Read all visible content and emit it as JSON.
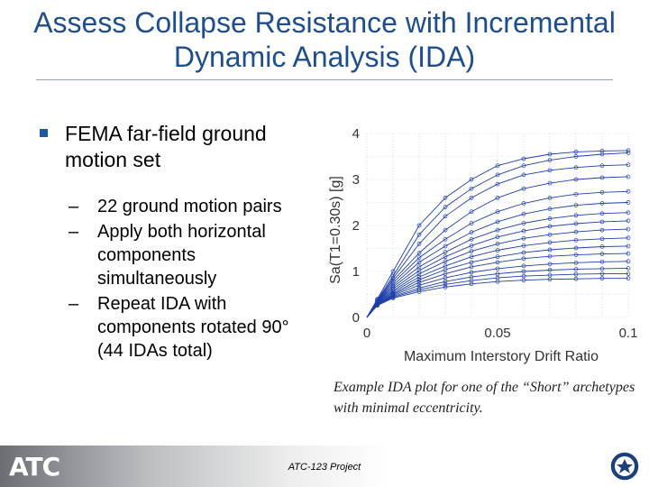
{
  "slide": {
    "title": "Assess Collapse Resistance with Incremental Dynamic Analysis (IDA)",
    "bullets": {
      "main": "FEMA far-field ground motion set",
      "subs": [
        "22 ground motion pairs",
        "Apply both horizontal components simultaneously",
        "Repeat IDA with components rotated 90° (44 IDAs total)"
      ],
      "dash": "–"
    },
    "caption": "Example IDA plot for one of the “Short” archetypes with minimal eccentricity.",
    "footer": {
      "logo_text": "ATC",
      "project": "ATC-123 Project",
      "seal_icon": "dhs-seal-icon"
    },
    "colors": {
      "title": "#1f4e8c",
      "bullet": "#1f5aa0",
      "curves": "#1f3fa8"
    }
  },
  "chart_data": {
    "type": "line",
    "title": "",
    "xlabel": "Maximum Interstory Drift Ratio",
    "ylabel": "Sa(T1=0.30s) [g]",
    "xlim": [
      0,
      0.1
    ],
    "ylim": [
      0,
      4
    ],
    "x_ticks": [
      "0",
      "0.05",
      "0.1"
    ],
    "y_ticks": [
      "0",
      "1",
      "2",
      "3",
      "4"
    ],
    "grid": true,
    "series": [
      {
        "x": [
          0,
          0.004,
          0.01,
          0.02,
          0.03,
          0.04,
          0.05,
          0.06,
          0.07,
          0.08,
          0.09,
          0.1
        ],
        "y": [
          0,
          0.4,
          1.0,
          2.0,
          2.6,
          3.0,
          3.3,
          3.45,
          3.55,
          3.6,
          3.62,
          3.63
        ]
      },
      {
        "x": [
          0,
          0.004,
          0.01,
          0.02,
          0.03,
          0.04,
          0.05,
          0.06,
          0.07,
          0.08,
          0.09,
          0.1
        ],
        "y": [
          0,
          0.38,
          0.9,
          1.8,
          2.4,
          2.8,
          3.1,
          3.3,
          3.42,
          3.5,
          3.55,
          3.58
        ]
      },
      {
        "x": [
          0,
          0.004,
          0.01,
          0.02,
          0.03,
          0.04,
          0.05,
          0.06,
          0.07,
          0.08,
          0.09,
          0.1
        ],
        "y": [
          0,
          0.36,
          0.85,
          1.6,
          2.2,
          2.6,
          2.9,
          3.1,
          3.2,
          3.26,
          3.3,
          3.32
        ]
      },
      {
        "x": [
          0,
          0.004,
          0.01,
          0.02,
          0.03,
          0.04,
          0.05,
          0.06,
          0.07,
          0.08,
          0.09,
          0.1
        ],
        "y": [
          0,
          0.35,
          0.8,
          1.4,
          1.9,
          2.3,
          2.6,
          2.8,
          2.92,
          3.0,
          3.04,
          3.06
        ]
      },
      {
        "x": [
          0,
          0.004,
          0.01,
          0.02,
          0.03,
          0.04,
          0.05,
          0.06,
          0.07,
          0.08,
          0.09,
          0.1
        ],
        "y": [
          0,
          0.34,
          0.75,
          1.3,
          1.7,
          2.05,
          2.3,
          2.48,
          2.6,
          2.68,
          2.72,
          2.74
        ]
      },
      {
        "x": [
          0,
          0.004,
          0.01,
          0.02,
          0.03,
          0.04,
          0.05,
          0.06,
          0.07,
          0.08,
          0.09,
          0.1
        ],
        "y": [
          0,
          0.33,
          0.7,
          1.2,
          1.55,
          1.85,
          2.08,
          2.25,
          2.36,
          2.44,
          2.48,
          2.5
        ]
      },
      {
        "x": [
          0,
          0.004,
          0.01,
          0.02,
          0.03,
          0.04,
          0.05,
          0.06,
          0.07,
          0.08,
          0.09,
          0.1
        ],
        "y": [
          0,
          0.32,
          0.66,
          1.1,
          1.42,
          1.7,
          1.9,
          2.05,
          2.15,
          2.22,
          2.26,
          2.28
        ]
      },
      {
        "x": [
          0,
          0.004,
          0.01,
          0.02,
          0.03,
          0.04,
          0.05,
          0.06,
          0.07,
          0.08,
          0.09,
          0.1
        ],
        "y": [
          0,
          0.31,
          0.62,
          1.02,
          1.32,
          1.56,
          1.75,
          1.88,
          1.98,
          2.04,
          2.08,
          2.1
        ]
      },
      {
        "x": [
          0,
          0.004,
          0.01,
          0.02,
          0.03,
          0.04,
          0.05,
          0.06,
          0.07,
          0.08,
          0.09,
          0.1
        ],
        "y": [
          0,
          0.3,
          0.58,
          0.95,
          1.22,
          1.44,
          1.6,
          1.72,
          1.8,
          1.86,
          1.9,
          1.92
        ]
      },
      {
        "x": [
          0,
          0.004,
          0.01,
          0.02,
          0.03,
          0.04,
          0.05,
          0.06,
          0.07,
          0.08,
          0.09,
          0.1
        ],
        "y": [
          0,
          0.3,
          0.55,
          0.88,
          1.12,
          1.32,
          1.46,
          1.56,
          1.63,
          1.68,
          1.71,
          1.73
        ]
      },
      {
        "x": [
          0,
          0.004,
          0.01,
          0.02,
          0.03,
          0.04,
          0.05,
          0.06,
          0.07,
          0.08,
          0.09,
          0.1
        ],
        "y": [
          0,
          0.29,
          0.52,
          0.82,
          1.04,
          1.2,
          1.32,
          1.41,
          1.47,
          1.51,
          1.54,
          1.55
        ]
      },
      {
        "x": [
          0,
          0.004,
          0.01,
          0.02,
          0.03,
          0.04,
          0.05,
          0.06,
          0.07,
          0.08,
          0.09,
          0.1
        ],
        "y": [
          0,
          0.28,
          0.5,
          0.76,
          0.95,
          1.1,
          1.2,
          1.28,
          1.33,
          1.36,
          1.38,
          1.39
        ]
      },
      {
        "x": [
          0,
          0.004,
          0.01,
          0.02,
          0.03,
          0.04,
          0.05,
          0.06,
          0.07,
          0.08,
          0.09,
          0.1
        ],
        "y": [
          0,
          0.28,
          0.48,
          0.7,
          0.86,
          0.98,
          1.06,
          1.12,
          1.16,
          1.19,
          1.21,
          1.22
        ]
      },
      {
        "x": [
          0,
          0.004,
          0.01,
          0.02,
          0.03,
          0.04,
          0.05,
          0.06,
          0.07,
          0.08,
          0.09,
          0.1
        ],
        "y": [
          0,
          0.27,
          0.46,
          0.64,
          0.78,
          0.88,
          0.95,
          1.0,
          1.03,
          1.05,
          1.06,
          1.07
        ]
      },
      {
        "x": [
          0,
          0.004,
          0.01,
          0.02,
          0.03,
          0.04,
          0.05,
          0.06,
          0.07,
          0.08,
          0.09,
          0.1
        ],
        "y": [
          0,
          0.27,
          0.44,
          0.6,
          0.72,
          0.8,
          0.86,
          0.9,
          0.92,
          0.94,
          0.95,
          0.95
        ]
      },
      {
        "x": [
          0,
          0.004,
          0.01,
          0.02,
          0.03,
          0.04,
          0.05,
          0.06,
          0.07,
          0.08,
          0.09,
          0.1
        ],
        "y": [
          0,
          0.26,
          0.42,
          0.56,
          0.66,
          0.73,
          0.78,
          0.81,
          0.83,
          0.84,
          0.85,
          0.85
        ]
      }
    ]
  }
}
